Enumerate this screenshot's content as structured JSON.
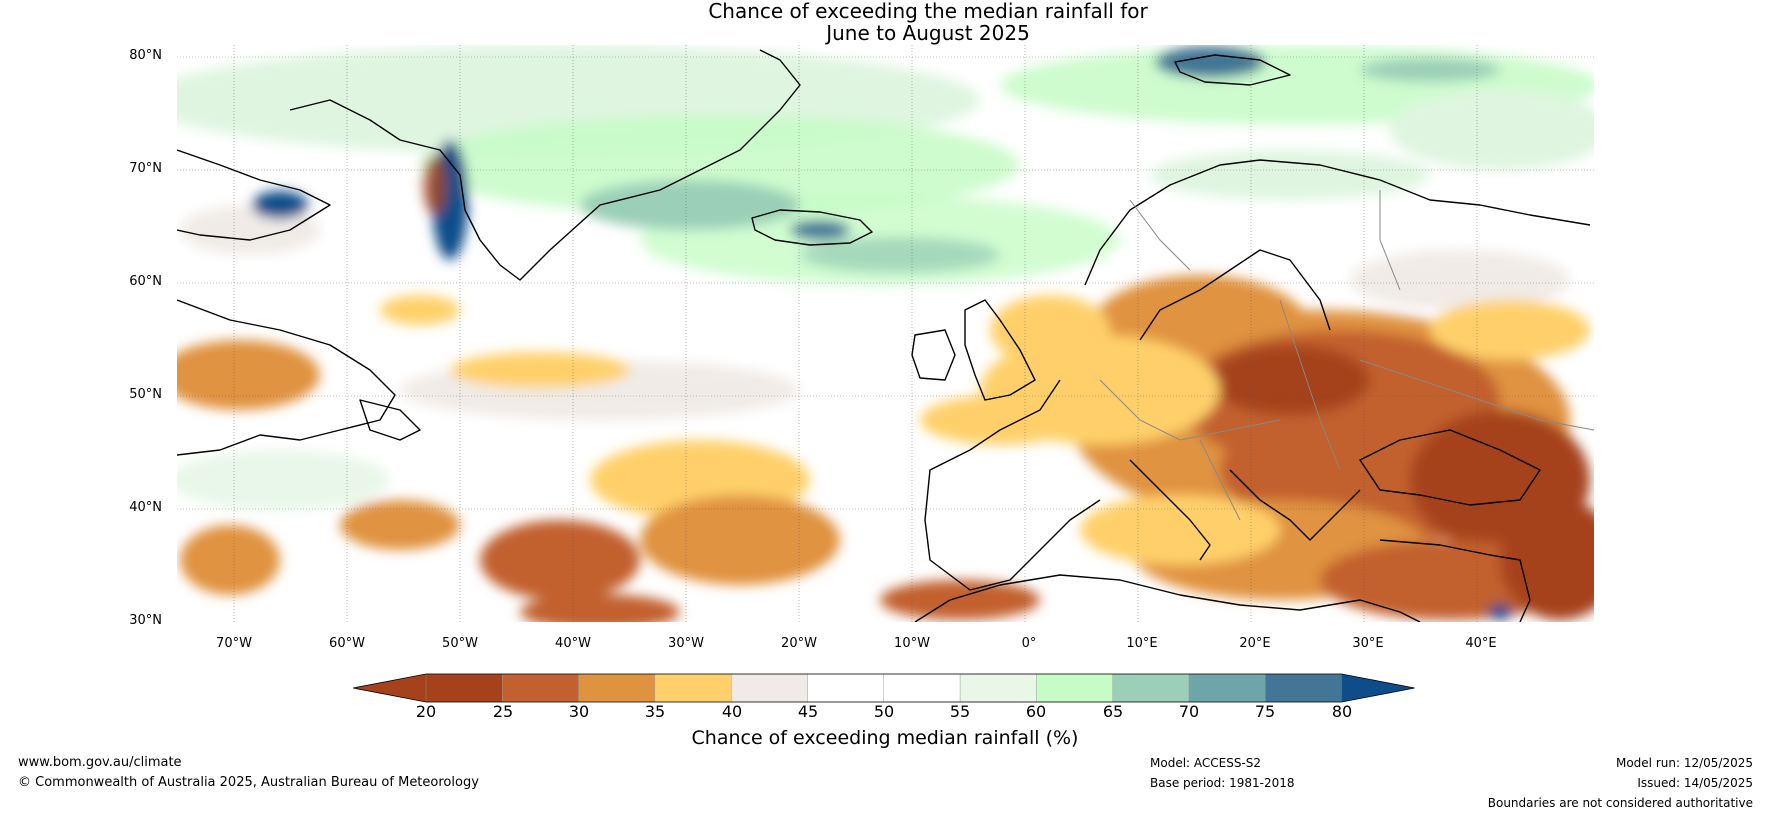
{
  "title_line1": "Chance of exceeding the median rainfall for",
  "title_line2": "June to August 2025",
  "lat_labels": [
    "80°N",
    "70°N",
    "60°N",
    "50°N",
    "40°N",
    "30°N"
  ],
  "lon_labels": [
    "70°W",
    "60°W",
    "50°W",
    "40°W",
    "30°W",
    "20°W",
    "10°W",
    "0°",
    "10°E",
    "20°E",
    "30°E",
    "40°E"
  ],
  "colorbar": {
    "ticks": [
      "20",
      "25",
      "30",
      "35",
      "40",
      "45",
      "50",
      "55",
      "60",
      "65",
      "70",
      "75",
      "80"
    ],
    "colors": [
      "#a5421c",
      "#c2612f",
      "#e0933f",
      "#ffd06b",
      "#f0ebe7",
      "#ffffff",
      "#ffffff",
      "#e8f7e8",
      "#c6fcc6",
      "#9bcfb7",
      "#6da5a8",
      "#437696",
      "#0d4e8a"
    ],
    "label": "Chance of exceeding median rainfall (%)"
  },
  "footer": {
    "website": "www.bom.gov.au/climate",
    "copyright": "© Commonwealth of Australia 2025, Australian Bureau of Meteorology",
    "model": "Model: ACCESS-S2",
    "base_period": "Base period: 1981-2018",
    "model_run": "Model run: 12/05/2025",
    "issued": "Issued: 14/05/2025",
    "disclaimer": "Boundaries are not considered authoritative"
  }
}
